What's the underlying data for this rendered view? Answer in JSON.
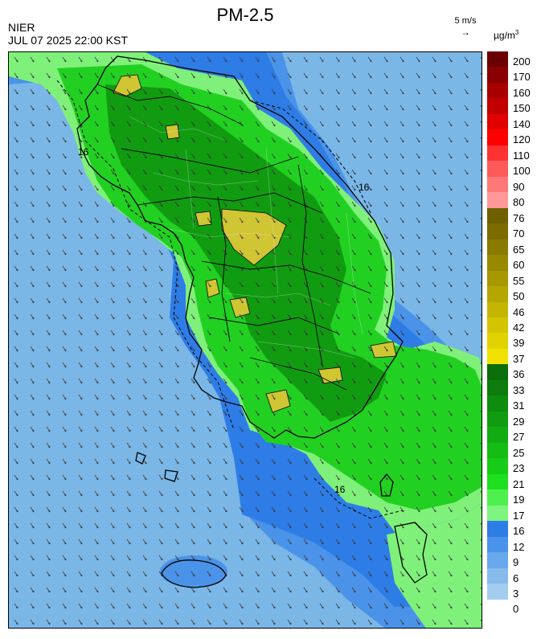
{
  "header": {
    "title": "PM-2.5",
    "agency": "NIER",
    "datetime": "JUL 07 2025 22:00 KST",
    "wind_reference": "5 m/s",
    "unit": "µg/m",
    "unit_exponent": "3"
  },
  "map": {
    "contour_labels": [
      "16",
      "16",
      "16"
    ],
    "colors": {
      "sea_low": "#7ab6e6",
      "sea_mid": "#4a93e8",
      "sea_high": "#2e7de6",
      "land_light": "#7ff07a",
      "land_mid": "#22d022",
      "land_dark": "#119b11",
      "hotspot": "#d0c533"
    }
  },
  "legend": {
    "bins": [
      {
        "label": "200",
        "color": "#6b0000"
      },
      {
        "label": "170",
        "color": "#8a0000"
      },
      {
        "label": "160",
        "color": "#a80000"
      },
      {
        "label": "150",
        "color": "#c20000"
      },
      {
        "label": "140",
        "color": "#e00000"
      },
      {
        "label": "120",
        "color": "#ff0000"
      },
      {
        "label": "110",
        "color": "#ff3232"
      },
      {
        "label": "100",
        "color": "#ff5a5a"
      },
      {
        "label": "90",
        "color": "#ff7878"
      },
      {
        "label": "80",
        "color": "#ff9999"
      },
      {
        "label": "76",
        "color": "#6e5f00"
      },
      {
        "label": "70",
        "color": "#7c6c00"
      },
      {
        "label": "65",
        "color": "#8a7a00"
      },
      {
        "label": "60",
        "color": "#988800"
      },
      {
        "label": "55",
        "color": "#a79700"
      },
      {
        "label": "50",
        "color": "#b6a600"
      },
      {
        "label": "46",
        "color": "#c4b500"
      },
      {
        "label": "42",
        "color": "#d3c400"
      },
      {
        "label": "39",
        "color": "#e1d300"
      },
      {
        "label": "37",
        "color": "#f0e200"
      },
      {
        "label": "36",
        "color": "#0a6e0a"
      },
      {
        "label": "33",
        "color": "#0c7c0c"
      },
      {
        "label": "31",
        "color": "#0e8c0e"
      },
      {
        "label": "29",
        "color": "#109c10"
      },
      {
        "label": "27",
        "color": "#12ac12"
      },
      {
        "label": "25",
        "color": "#14bc14"
      },
      {
        "label": "23",
        "color": "#16cc16"
      },
      {
        "label": "21",
        "color": "#1ee01e"
      },
      {
        "label": "19",
        "color": "#4ef04e"
      },
      {
        "label": "17",
        "color": "#7ef57e"
      },
      {
        "label": "16",
        "color": "#2e7de6"
      },
      {
        "label": "12",
        "color": "#4a93ea"
      },
      {
        "label": "9",
        "color": "#68a8ec"
      },
      {
        "label": "6",
        "color": "#86bbec"
      },
      {
        "label": "3",
        "color": "#a3cdee"
      },
      {
        "label": "0",
        "color": "#a3cdee"
      }
    ]
  }
}
